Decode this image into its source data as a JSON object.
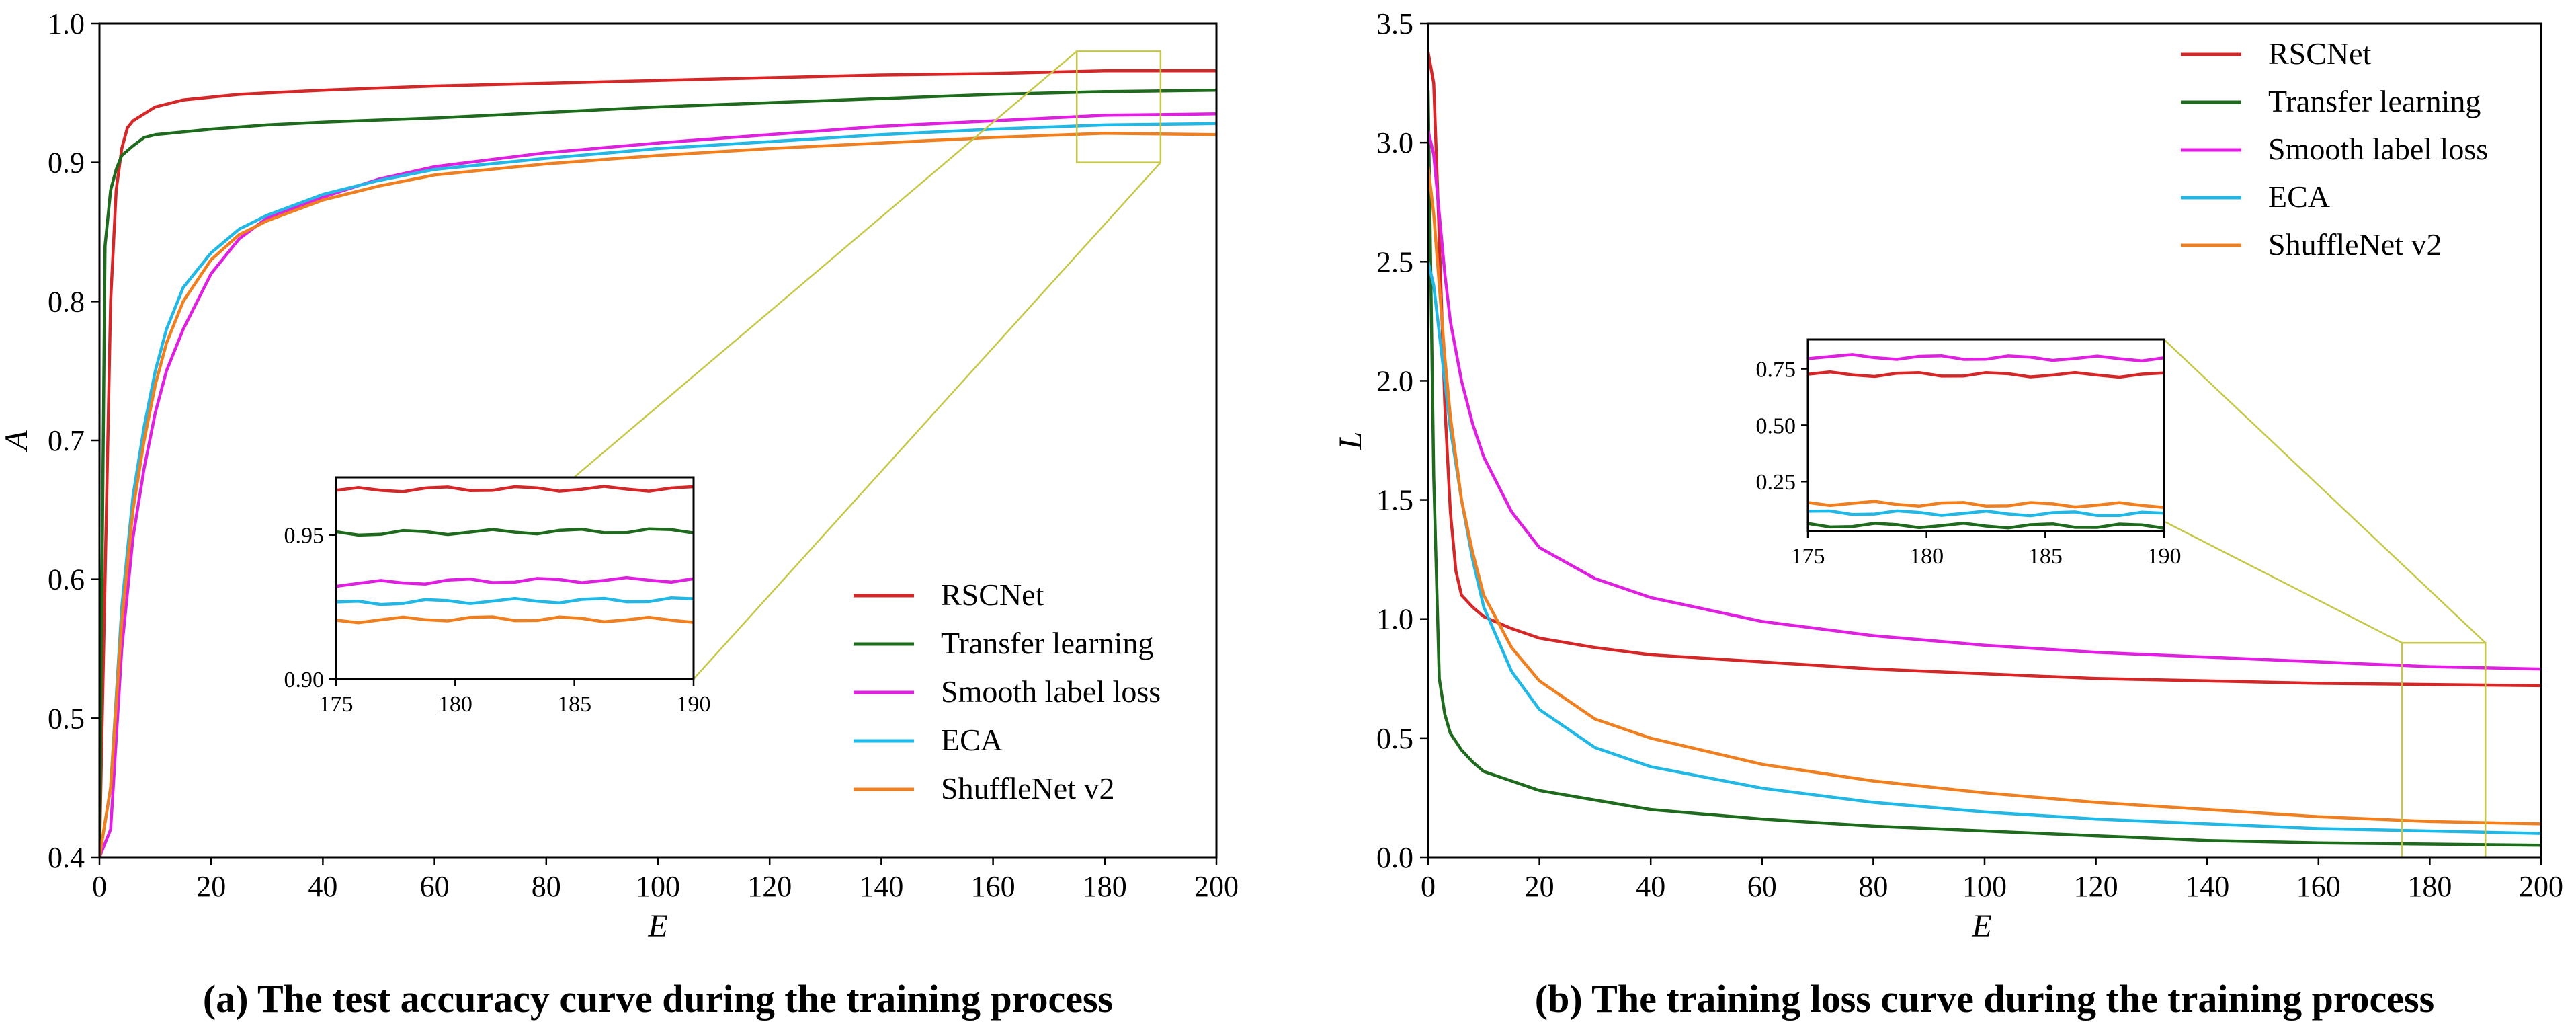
{
  "chart_data": [
    {
      "type": "line",
      "caption": "(a) The test accuracy curve during the training process",
      "xlabel": "E",
      "ylabel": "A",
      "xlim": [
        0,
        200
      ],
      "ylim": [
        0.4,
        1.0
      ],
      "xticks": [
        "0",
        "20",
        "40",
        "60",
        "80",
        "100",
        "120",
        "140",
        "160",
        "180",
        "200"
      ],
      "yticks": [
        "0.4",
        "0.5",
        "0.6",
        "0.7",
        "0.8",
        "0.9",
        "1.0"
      ],
      "legend_position": "lower-right",
      "zoom_box": {
        "x": [
          175,
          190
        ],
        "y": [
          0.9,
          0.98
        ]
      },
      "inset": {
        "xlim": [
          175,
          190
        ],
        "ylim": [
          0.9,
          0.97
        ],
        "xticks": [
          "175",
          "180",
          "185",
          "190"
        ],
        "yticks": [
          "0.90",
          "0.95"
        ]
      },
      "series": [
        {
          "name": "RSCNet",
          "color": "#d62728",
          "x": [
            0,
            1,
            2,
            3,
            4,
            5,
            6,
            8,
            10,
            12,
            15,
            20,
            25,
            30,
            40,
            60,
            80,
            100,
            120,
            140,
            160,
            180,
            200
          ],
          "values": [
            0.4,
            0.6,
            0.8,
            0.88,
            0.91,
            0.925,
            0.93,
            0.935,
            0.94,
            0.942,
            0.945,
            0.947,
            0.949,
            0.95,
            0.952,
            0.955,
            0.957,
            0.959,
            0.961,
            0.963,
            0.964,
            0.966,
            0.966
          ]
        },
        {
          "name": "Transfer learning",
          "color": "#1e6b1e",
          "x": [
            0,
            1,
            2,
            3,
            4,
            6,
            8,
            10,
            15,
            20,
            30,
            40,
            60,
            80,
            100,
            120,
            140,
            160,
            180,
            200
          ],
          "values": [
            0.4,
            0.84,
            0.88,
            0.895,
            0.905,
            0.912,
            0.918,
            0.92,
            0.922,
            0.924,
            0.927,
            0.929,
            0.932,
            0.936,
            0.94,
            0.943,
            0.946,
            0.949,
            0.951,
            0.952
          ]
        },
        {
          "name": "Smooth label loss",
          "color": "#e020e0",
          "x": [
            0,
            2,
            4,
            6,
            8,
            10,
            12,
            15,
            20,
            25,
            30,
            40,
            50,
            60,
            80,
            100,
            120,
            140,
            160,
            180,
            200
          ],
          "values": [
            0.4,
            0.42,
            0.55,
            0.63,
            0.68,
            0.72,
            0.75,
            0.78,
            0.82,
            0.845,
            0.86,
            0.875,
            0.888,
            0.897,
            0.907,
            0.914,
            0.92,
            0.926,
            0.93,
            0.934,
            0.935
          ]
        },
        {
          "name": "ECA",
          "color": "#22b8e6",
          "x": [
            0,
            2,
            4,
            6,
            8,
            10,
            12,
            15,
            20,
            25,
            30,
            40,
            50,
            60,
            80,
            100,
            120,
            140,
            160,
            180,
            200
          ],
          "values": [
            0.4,
            0.45,
            0.58,
            0.66,
            0.71,
            0.75,
            0.78,
            0.81,
            0.835,
            0.852,
            0.862,
            0.877,
            0.887,
            0.895,
            0.903,
            0.91,
            0.915,
            0.92,
            0.924,
            0.927,
            0.928
          ]
        },
        {
          "name": "ShuffleNet v2",
          "color": "#f07f20",
          "x": [
            0,
            2,
            4,
            6,
            8,
            10,
            12,
            15,
            20,
            25,
            30,
            40,
            50,
            60,
            80,
            100,
            120,
            140,
            160,
            180,
            200
          ],
          "values": [
            0.4,
            0.45,
            0.57,
            0.65,
            0.7,
            0.74,
            0.77,
            0.8,
            0.83,
            0.848,
            0.858,
            0.873,
            0.883,
            0.891,
            0.899,
            0.905,
            0.91,
            0.914,
            0.918,
            0.921,
            0.92
          ]
        }
      ]
    },
    {
      "type": "line",
      "caption": "(b) The training loss curve during the training process",
      "xlabel": "E",
      "ylabel": "L",
      "xlim": [
        0,
        200
      ],
      "ylim": [
        0,
        3.5
      ],
      "xticks": [
        "0",
        "20",
        "40",
        "60",
        "80",
        "100",
        "120",
        "140",
        "160",
        "180",
        "200"
      ],
      "yticks": [
        "0.0",
        "0.5",
        "1.0",
        "1.5",
        "2.0",
        "2.5",
        "3.0",
        "3.5"
      ],
      "legend_position": "top-right",
      "zoom_box": {
        "x": [
          175,
          190
        ],
        "y": [
          0,
          0.9
        ]
      },
      "inset": {
        "xlim": [
          175,
          190
        ],
        "ylim": [
          0.03,
          0.88
        ],
        "xticks": [
          "175",
          "180",
          "185",
          "190"
        ],
        "yticks": [
          "0.25",
          "0.50",
          "0.75"
        ]
      },
      "series": [
        {
          "name": "RSCNet",
          "color": "#d62728",
          "x": [
            0,
            1,
            2,
            3,
            4,
            5,
            6,
            8,
            10,
            15,
            20,
            30,
            40,
            60,
            80,
            100,
            120,
            140,
            160,
            180,
            200
          ],
          "values": [
            3.38,
            3.25,
            2.6,
            1.9,
            1.45,
            1.2,
            1.1,
            1.05,
            1.01,
            0.96,
            0.92,
            0.88,
            0.85,
            0.82,
            0.79,
            0.77,
            0.75,
            0.74,
            0.73,
            0.725,
            0.72
          ]
        },
        {
          "name": "Transfer learning",
          "color": "#1e6b1e",
          "x": [
            0,
            1,
            2,
            3,
            4,
            6,
            8,
            10,
            15,
            20,
            30,
            40,
            60,
            80,
            100,
            120,
            140,
            160,
            180,
            200
          ],
          "values": [
            3.22,
            1.6,
            0.75,
            0.6,
            0.52,
            0.45,
            0.4,
            0.36,
            0.32,
            0.28,
            0.24,
            0.2,
            0.16,
            0.13,
            0.11,
            0.09,
            0.07,
            0.06,
            0.055,
            0.05
          ]
        },
        {
          "name": "Smooth label loss",
          "color": "#e020e0",
          "x": [
            0,
            1,
            2,
            3,
            4,
            6,
            8,
            10,
            15,
            20,
            30,
            40,
            60,
            80,
            100,
            120,
            140,
            160,
            180,
            200
          ],
          "values": [
            3.05,
            2.95,
            2.7,
            2.45,
            2.25,
            2.0,
            1.82,
            1.68,
            1.45,
            1.3,
            1.17,
            1.09,
            0.99,
            0.93,
            0.89,
            0.86,
            0.84,
            0.82,
            0.8,
            0.79
          ]
        },
        {
          "name": "ECA",
          "color": "#22b8e6",
          "x": [
            0,
            1,
            2,
            3,
            4,
            6,
            8,
            10,
            15,
            20,
            30,
            40,
            60,
            80,
            100,
            120,
            140,
            160,
            180,
            200
          ],
          "values": [
            2.5,
            2.4,
            2.2,
            2.0,
            1.8,
            1.5,
            1.25,
            1.05,
            0.78,
            0.62,
            0.46,
            0.38,
            0.29,
            0.23,
            0.19,
            0.16,
            0.14,
            0.12,
            0.11,
            0.1
          ]
        },
        {
          "name": "ShuffleNet v2",
          "color": "#f07f20",
          "x": [
            0,
            1,
            2,
            3,
            4,
            6,
            8,
            10,
            15,
            20,
            30,
            40,
            60,
            80,
            100,
            120,
            140,
            160,
            180,
            200
          ],
          "values": [
            2.9,
            2.7,
            2.4,
            2.1,
            1.85,
            1.5,
            1.28,
            1.1,
            0.88,
            0.74,
            0.58,
            0.5,
            0.39,
            0.32,
            0.27,
            0.23,
            0.2,
            0.17,
            0.15,
            0.14
          ]
        }
      ]
    }
  ]
}
